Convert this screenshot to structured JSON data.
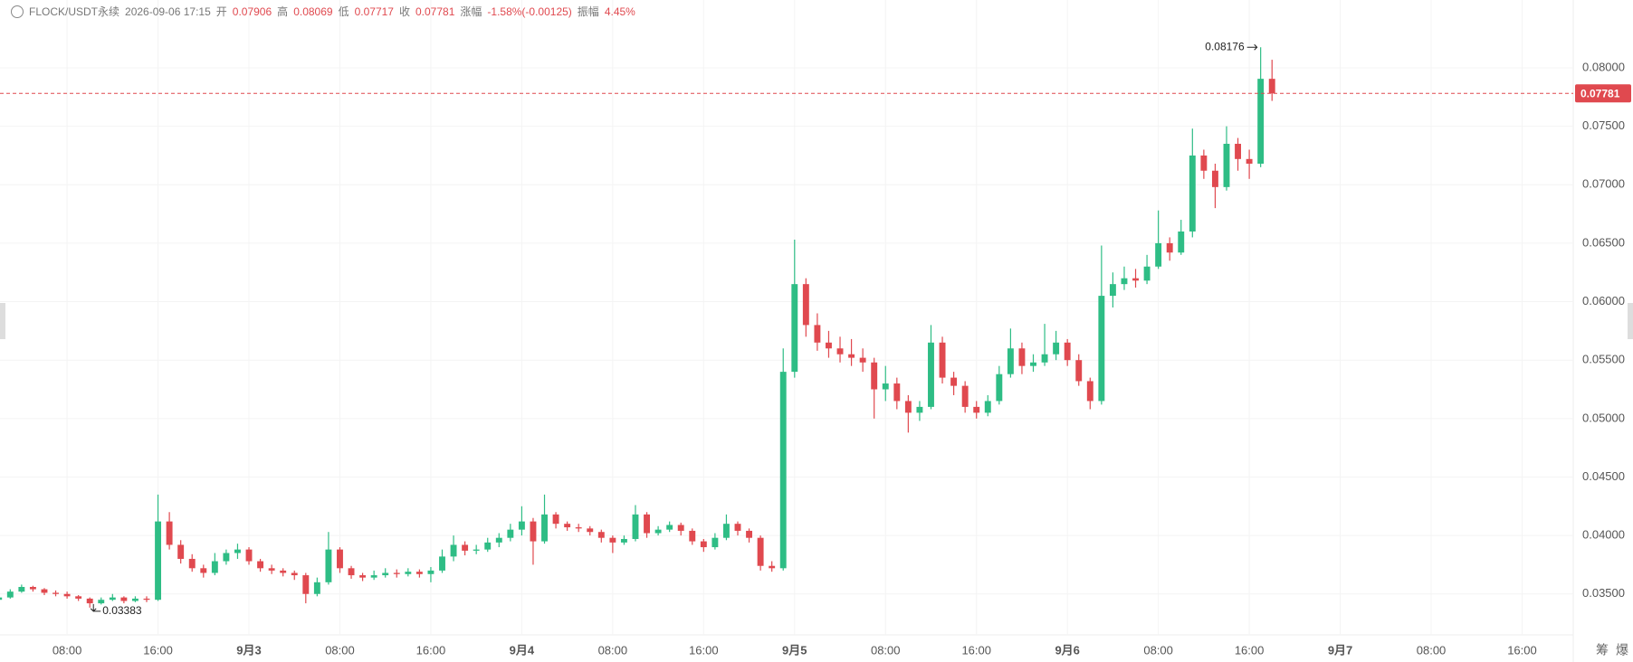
{
  "header": {
    "symbol": "FLOCK/USDT永续",
    "time": "2026-09-06 17:15",
    "labels": [
      "开",
      "高",
      "低",
      "收",
      "涨幅",
      "振幅"
    ],
    "change": "-1.58%(-0.00125)",
    "amplitude": "4.45%"
  },
  "footer_buttons": [
    "筹",
    "爆"
  ],
  "chart_data": {
    "type": "candlestick",
    "up_color": "#2ebd85",
    "down_color": "#e0494f",
    "grid": true,
    "x": [
      2,
      3,
      4,
      5,
      6,
      7,
      8,
      9,
      10,
      11,
      12,
      13,
      14,
      15,
      16,
      17,
      18,
      19,
      20,
      21,
      22,
      23,
      24,
      25,
      26,
      27,
      28,
      29,
      30,
      31,
      32,
      33,
      34,
      35,
      36,
      37,
      38,
      39,
      40,
      41,
      42,
      43,
      44,
      45,
      46,
      47,
      48,
      49,
      50,
      51,
      52,
      53,
      54,
      55,
      56,
      57,
      58,
      59,
      60,
      61,
      62,
      63,
      64,
      65,
      66,
      67,
      68,
      69,
      70,
      71,
      72,
      73,
      74,
      75,
      76,
      77,
      78,
      79,
      80,
      81,
      82,
      83,
      84,
      85,
      86,
      87,
      88,
      89,
      90,
      91,
      92,
      93,
      94,
      95,
      96,
      97,
      98,
      99,
      100,
      101,
      102,
      103,
      104,
      105,
      106,
      107,
      108,
      109,
      110,
      111,
      112,
      113,
      114
    ],
    "open": [
      0.0345,
      0.0347,
      0.0352,
      0.0356,
      0.0354,
      0.0351,
      0.035,
      0.0348,
      0.0346,
      0.0342,
      0.0345,
      0.0347,
      0.0344,
      0.0346,
      0.0345,
      0.0412,
      0.0392,
      0.038,
      0.0372,
      0.0368,
      0.0378,
      0.0385,
      0.0388,
      0.0378,
      0.0372,
      0.037,
      0.0368,
      0.0366,
      0.035,
      0.036,
      0.0388,
      0.0372,
      0.0366,
      0.0364,
      0.0366,
      0.0368,
      0.0367,
      0.0369,
      0.0367,
      0.037,
      0.0382,
      0.0392,
      0.0387,
      0.0388,
      0.0394,
      0.0398,
      0.0405,
      0.0412,
      0.0395,
      0.0418,
      0.041,
      0.0407,
      0.0406,
      0.0403,
      0.0398,
      0.0394,
      0.0397,
      0.0418,
      0.0402,
      0.0405,
      0.0409,
      0.0404,
      0.0395,
      0.039,
      0.0398,
      0.041,
      0.0404,
      0.0398,
      0.0374,
      0.0372,
      0.054,
      0.0615,
      0.058,
      0.0565,
      0.056,
      0.0555,
      0.0552,
      0.0548,
      0.0525,
      0.053,
      0.0515,
      0.0505,
      0.051,
      0.0565,
      0.0535,
      0.0528,
      0.051,
      0.0505,
      0.0515,
      0.0538,
      0.056,
      0.0545,
      0.0548,
      0.0555,
      0.0565,
      0.055,
      0.0532,
      0.0515,
      0.0605,
      0.0615,
      0.062,
      0.0618,
      0.063,
      0.065,
      0.0642,
      0.066,
      0.0725,
      0.0712,
      0.0698,
      0.0735,
      0.0722,
      0.0718,
      0.07906
    ],
    "high": [
      0.0349,
      0.0354,
      0.0358,
      0.0357,
      0.0355,
      0.0353,
      0.0352,
      0.0349,
      0.0347,
      0.0347,
      0.035,
      0.0348,
      0.0348,
      0.0348,
      0.0435,
      0.042,
      0.0396,
      0.0384,
      0.0375,
      0.0385,
      0.0388,
      0.0393,
      0.039,
      0.038,
      0.0375,
      0.0372,
      0.037,
      0.0368,
      0.0364,
      0.0403,
      0.039,
      0.0374,
      0.0368,
      0.037,
      0.0372,
      0.0371,
      0.0372,
      0.0371,
      0.0373,
      0.0388,
      0.04,
      0.0395,
      0.0392,
      0.0398,
      0.0402,
      0.041,
      0.0425,
      0.0415,
      0.0435,
      0.042,
      0.0412,
      0.041,
      0.0408,
      0.0405,
      0.04,
      0.04,
      0.0426,
      0.042,
      0.0408,
      0.0412,
      0.0411,
      0.0406,
      0.0397,
      0.0402,
      0.0418,
      0.0412,
      0.0406,
      0.04,
      0.0378,
      0.056,
      0.0653,
      0.062,
      0.059,
      0.0575,
      0.057,
      0.0568,
      0.056,
      0.0552,
      0.0545,
      0.0535,
      0.052,
      0.0515,
      0.058,
      0.057,
      0.054,
      0.0532,
      0.0515,
      0.052,
      0.0545,
      0.0577,
      0.0565,
      0.0555,
      0.0581,
      0.0575,
      0.0568,
      0.0555,
      0.0535,
      0.0648,
      0.0625,
      0.063,
      0.0628,
      0.064,
      0.0678,
      0.0655,
      0.067,
      0.0748,
      0.073,
      0.0718,
      0.075,
      0.074,
      0.073,
      0.08176,
      0.08069
    ],
    "low": [
      0.0343,
      0.0346,
      0.0351,
      0.0352,
      0.0349,
      0.0348,
      0.0346,
      0.0344,
      0.03383,
      0.0341,
      0.0344,
      0.0342,
      0.0343,
      0.0343,
      0.0344,
      0.0388,
      0.0376,
      0.0369,
      0.0364,
      0.0366,
      0.0375,
      0.038,
      0.0375,
      0.0369,
      0.0367,
      0.0365,
      0.0362,
      0.0342,
      0.0348,
      0.0358,
      0.0368,
      0.0363,
      0.0361,
      0.0362,
      0.0364,
      0.0364,
      0.0365,
      0.0364,
      0.036,
      0.0368,
      0.0378,
      0.0383,
      0.0384,
      0.0386,
      0.039,
      0.0395,
      0.04,
      0.0375,
      0.0393,
      0.0406,
      0.0404,
      0.0403,
      0.04,
      0.0394,
      0.0385,
      0.0392,
      0.0395,
      0.0398,
      0.04,
      0.0403,
      0.04,
      0.0392,
      0.0386,
      0.0388,
      0.0396,
      0.04,
      0.0394,
      0.037,
      0.0369,
      0.037,
      0.0535,
      0.057,
      0.0558,
      0.0552,
      0.0548,
      0.0545,
      0.054,
      0.05,
      0.0515,
      0.0508,
      0.0488,
      0.0498,
      0.0508,
      0.053,
      0.052,
      0.0505,
      0.05,
      0.0502,
      0.0512,
      0.0535,
      0.0538,
      0.054,
      0.0545,
      0.055,
      0.0545,
      0.0528,
      0.0508,
      0.0512,
      0.0595,
      0.061,
      0.0612,
      0.0615,
      0.0628,
      0.0635,
      0.064,
      0.0655,
      0.0705,
      0.068,
      0.0695,
      0.0712,
      0.0705,
      0.0715,
      0.07717
    ],
    "close": [
      0.0347,
      0.0352,
      0.0356,
      0.0354,
      0.0351,
      0.035,
      0.0348,
      0.0346,
      0.0342,
      0.0345,
      0.0347,
      0.0344,
      0.0346,
      0.0345,
      0.0412,
      0.0392,
      0.038,
      0.0372,
      0.0368,
      0.0378,
      0.0385,
      0.0388,
      0.0378,
      0.0372,
      0.037,
      0.0368,
      0.0366,
      0.035,
      0.036,
      0.0388,
      0.0372,
      0.0366,
      0.0364,
      0.0366,
      0.0368,
      0.0367,
      0.0369,
      0.0367,
      0.037,
      0.0382,
      0.0392,
      0.0387,
      0.0388,
      0.0394,
      0.0398,
      0.0405,
      0.0412,
      0.0395,
      0.0418,
      0.041,
      0.0407,
      0.0406,
      0.0403,
      0.0398,
      0.0394,
      0.0397,
      0.0418,
      0.0402,
      0.0405,
      0.0409,
      0.0404,
      0.0395,
      0.039,
      0.0398,
      0.041,
      0.0404,
      0.0398,
      0.0374,
      0.0372,
      0.054,
      0.0615,
      0.058,
      0.0565,
      0.056,
      0.0555,
      0.0552,
      0.0548,
      0.0525,
      0.053,
      0.0515,
      0.0505,
      0.051,
      0.0565,
      0.0535,
      0.0528,
      0.051,
      0.0505,
      0.0515,
      0.0538,
      0.056,
      0.0545,
      0.0548,
      0.0555,
      0.0565,
      0.055,
      0.0532,
      0.0515,
      0.0605,
      0.0615,
      0.062,
      0.0618,
      0.063,
      0.065,
      0.0642,
      0.066,
      0.0725,
      0.0712,
      0.0698,
      0.0735,
      0.0722,
      0.0718,
      0.07906,
      0.07781
    ],
    "xlim": [
      2.1,
      140.5
    ],
    "xticks": [
      {
        "value": 8,
        "label": "08:00"
      },
      {
        "value": 16,
        "label": "16:00"
      },
      {
        "value": 24,
        "label": "9月3"
      },
      {
        "value": 32,
        "label": "08:00"
      },
      {
        "value": 40,
        "label": "16:00"
      },
      {
        "value": 48,
        "label": "9月4"
      },
      {
        "value": 56,
        "label": "08:00"
      },
      {
        "value": 64,
        "label": "16:00"
      },
      {
        "value": 72,
        "label": "9月5"
      },
      {
        "value": 80,
        "label": "08:00"
      },
      {
        "value": 88,
        "label": "16:00"
      },
      {
        "value": 96,
        "label": "9月6"
      },
      {
        "value": 104,
        "label": "08:00"
      },
      {
        "value": 112,
        "label": "16:00"
      },
      {
        "value": 120,
        "label": "9月7"
      },
      {
        "value": 128,
        "label": "08:00"
      },
      {
        "value": 136,
        "label": "16:00"
      }
    ],
    "ylim": [
      0.0315,
      0.0858
    ],
    "yticks": [
      {
        "value": 0.035,
        "label": "0.03500"
      },
      {
        "value": 0.04,
        "label": "0.04000"
      },
      {
        "value": 0.045,
        "label": "0.04500"
      },
      {
        "value": 0.05,
        "label": "0.05000"
      },
      {
        "value": 0.055,
        "label": "0.05500"
      },
      {
        "value": 0.06,
        "label": "0.06000"
      },
      {
        "value": 0.065,
        "label": "0.06500"
      },
      {
        "value": 0.07,
        "label": "0.07000"
      },
      {
        "value": 0.075,
        "label": "0.07500"
      },
      {
        "value": 0.08,
        "label": "0.08000"
      }
    ]
  }
}
